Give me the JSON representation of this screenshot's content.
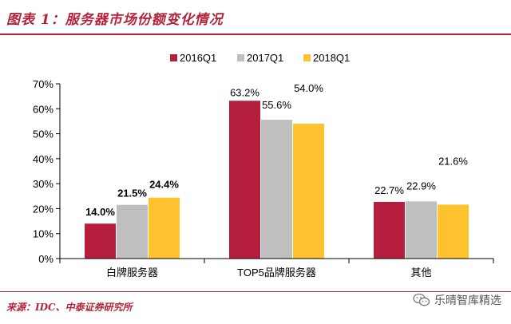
{
  "header": {
    "title": "图表 1：服务器市场份额变化情况"
  },
  "footer": {
    "source": "来源：IDC、中泰证券研究所",
    "watermark": "乐晴智库精选"
  },
  "colors": {
    "accent": "#b2243a",
    "series": [
      "#b61e3e",
      "#bfbfbf",
      "#fdc22d"
    ]
  },
  "icons": {
    "watermark": "wechat-icon"
  },
  "chart_data": {
    "type": "bar",
    "categories": [
      "白牌服务器",
      "TOP5品牌服务器",
      "其他"
    ],
    "series": [
      {
        "name": "2016Q1",
        "values": [
          14.0,
          63.2,
          22.7
        ],
        "labels": [
          "14.0%",
          "63.2%",
          "22.7%"
        ]
      },
      {
        "name": "2017Q1",
        "values": [
          21.5,
          55.6,
          22.9
        ],
        "labels": [
          "21.5%",
          "55.6%",
          "22.9%"
        ]
      },
      {
        "name": "2018Q1",
        "values": [
          24.4,
          54.0,
          21.6
        ],
        "labels": [
          "24.4%",
          "54.0%",
          "21.6%"
        ]
      }
    ],
    "yticks": [
      "0%",
      "10%",
      "20%",
      "30%",
      "40%",
      "50%",
      "60%",
      "70%"
    ],
    "ylim": [
      0,
      70
    ],
    "legend_position": "top-center",
    "grid": false
  }
}
